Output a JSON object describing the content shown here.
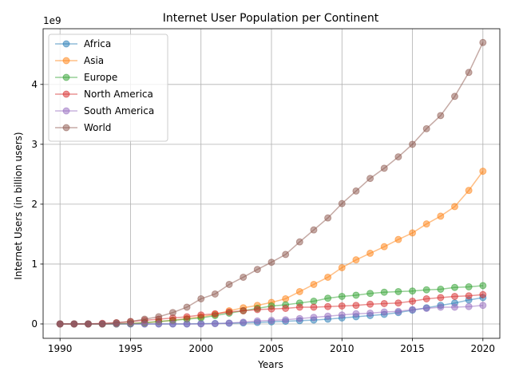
{
  "chart_data": {
    "type": "line",
    "title": "Internet User Population per Continent",
    "xlabel": "Years",
    "ylabel": "Internet Users (in billion users)",
    "y_offset_label": "1e9",
    "x_ticks": [
      1990,
      1995,
      2000,
      2005,
      2010,
      2015,
      2020
    ],
    "y_ticks": [
      0,
      1,
      2,
      3,
      4
    ],
    "y_tick_labels": [
      "0",
      "1",
      "2",
      "3",
      "4"
    ],
    "xlim": [
      1988.8,
      2021.2
    ],
    "ylim": [
      -0.24,
      4.93
    ],
    "grid": true,
    "legend_position": "upper-left",
    "x": [
      1990,
      1991,
      1992,
      1993,
      1994,
      1995,
      1996,
      1997,
      1998,
      1999,
      2000,
      2001,
      2002,
      2003,
      2004,
      2005,
      2006,
      2007,
      2008,
      2009,
      2010,
      2011,
      2012,
      2013,
      2014,
      2015,
      2016,
      2017,
      2018,
      2019,
      2020
    ],
    "series": [
      {
        "name": "Africa",
        "color": "#1f77b4",
        "values": [
          0,
          0,
          0,
          0,
          0,
          0,
          0,
          0,
          0,
          0,
          0.005,
          0.008,
          0.012,
          0.018,
          0.025,
          0.035,
          0.045,
          0.055,
          0.065,
          0.08,
          0.1,
          0.12,
          0.14,
          0.16,
          0.19,
          0.23,
          0.27,
          0.31,
          0.35,
          0.4,
          0.44
        ]
      },
      {
        "name": "Asia",
        "color": "#ff7f0e",
        "values": [
          0,
          0,
          0,
          0,
          0,
          0.01,
          0.02,
          0.04,
          0.06,
          0.09,
          0.12,
          0.16,
          0.22,
          0.27,
          0.31,
          0.36,
          0.42,
          0.54,
          0.66,
          0.78,
          0.94,
          1.07,
          1.18,
          1.29,
          1.41,
          1.52,
          1.67,
          1.8,
          1.96,
          2.23,
          2.55
        ]
      },
      {
        "name": "Europe",
        "color": "#2ca02c",
        "values": [
          0,
          0,
          0,
          0,
          0,
          0.005,
          0.02,
          0.04,
          0.06,
          0.08,
          0.1,
          0.14,
          0.18,
          0.22,
          0.26,
          0.3,
          0.32,
          0.35,
          0.38,
          0.43,
          0.46,
          0.48,
          0.51,
          0.53,
          0.54,
          0.55,
          0.57,
          0.58,
          0.61,
          0.62,
          0.64
        ]
      },
      {
        "name": "North America",
        "color": "#d62728",
        "values": [
          0,
          0,
          0,
          0.01,
          0.02,
          0.04,
          0.06,
          0.08,
          0.1,
          0.12,
          0.15,
          0.17,
          0.2,
          0.22,
          0.24,
          0.25,
          0.26,
          0.28,
          0.28,
          0.29,
          0.3,
          0.31,
          0.33,
          0.34,
          0.35,
          0.38,
          0.42,
          0.44,
          0.46,
          0.47,
          0.49
        ]
      },
      {
        "name": "South America",
        "color": "#9467bd",
        "values": [
          0,
          0,
          0,
          0,
          0,
          0,
          0,
          0,
          0,
          0,
          0,
          0.005,
          0.015,
          0.03,
          0.05,
          0.06,
          0.07,
          0.09,
          0.11,
          0.13,
          0.15,
          0.17,
          0.18,
          0.2,
          0.21,
          0.24,
          0.26,
          0.28,
          0.28,
          0.29,
          0.31
        ]
      },
      {
        "name": "World",
        "color": "#8c564b",
        "values": [
          0,
          0,
          0,
          0,
          0.02,
          0.04,
          0.08,
          0.12,
          0.19,
          0.28,
          0.42,
          0.5,
          0.66,
          0.78,
          0.91,
          1.03,
          1.16,
          1.37,
          1.57,
          1.77,
          2.01,
          2.22,
          2.43,
          2.6,
          2.79,
          3.0,
          3.26,
          3.48,
          3.8,
          4.2,
          4.7
        ]
      }
    ]
  }
}
